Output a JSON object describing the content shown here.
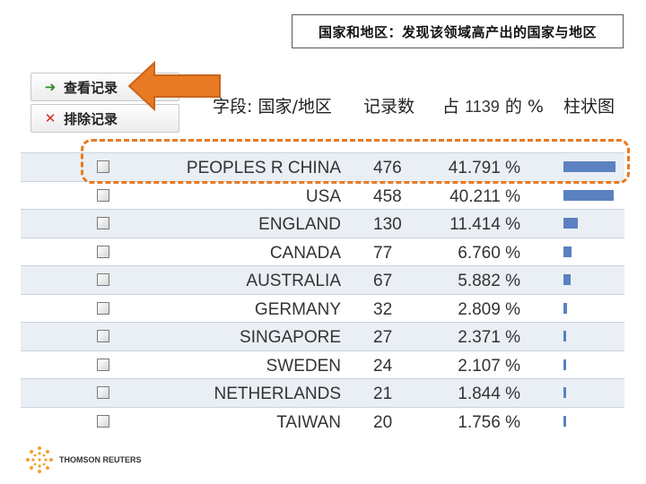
{
  "slide": {
    "title": "国家和地区：发现该领域高产出的国家与地区"
  },
  "toolbar": {
    "view_label": "查看记录",
    "exclude_label": "排除记录"
  },
  "table": {
    "headers": {
      "field": "字段: 国家/地区",
      "count": "记录数",
      "pct_prefix": "占",
      "pct_total": "1139",
      "pct_suffix": "的 %",
      "bar": "柱状图"
    },
    "rows": [
      {
        "country": "PEOPLES R CHINA",
        "count": "476",
        "pct": "41.791 %",
        "share": 41.791
      },
      {
        "country": "USA",
        "count": "458",
        "pct": "40.211 %",
        "share": 40.211
      },
      {
        "country": "ENGLAND",
        "count": "130",
        "pct": "11.414 %",
        "share": 11.414
      },
      {
        "country": "CANADA",
        "count": "77",
        "pct": "6.760 %",
        "share": 6.76
      },
      {
        "country": "AUSTRALIA",
        "count": "67",
        "pct": "5.882 %",
        "share": 5.882
      },
      {
        "country": "GERMANY",
        "count": "32",
        "pct": "2.809 %",
        "share": 2.809
      },
      {
        "country": "SINGAPORE",
        "count": "27",
        "pct": "2.371 %",
        "share": 2.371
      },
      {
        "country": "SWEDEN",
        "count": "24",
        "pct": "2.107 %",
        "share": 2.107
      },
      {
        "country": "NETHERLANDS",
        "count": "21",
        "pct": "1.844 %",
        "share": 1.844
      },
      {
        "country": "TAIWAN",
        "count": "20",
        "pct": "1.756 %",
        "share": 1.756
      }
    ]
  },
  "footer": {
    "logo_text": "THOMSON REUTERS"
  },
  "colors": {
    "bar": "#5b81c0",
    "arrow": "#e87a23",
    "highlight": "#e87a23",
    "row_alt": "#eaeff5"
  },
  "icons": {
    "view": "arrow-right-icon",
    "exclude": "x-icon"
  }
}
